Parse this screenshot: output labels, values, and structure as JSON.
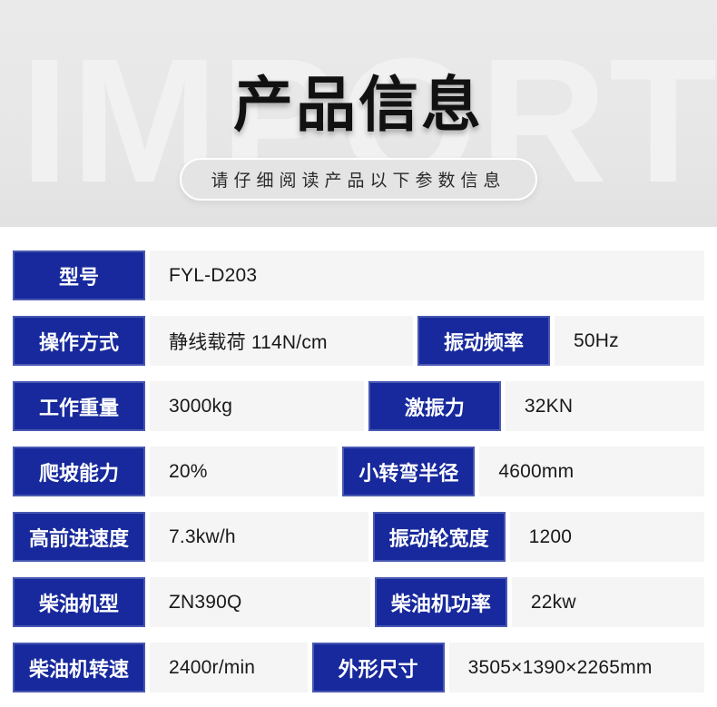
{
  "watermark": "IMPORT",
  "header": {
    "title": "产品信息",
    "subtitle": "请仔细阅读产品以下参数信息"
  },
  "colors": {
    "accent_blue": "#17299c",
    "header_bg": "#e7e7e7",
    "watermark_color": "#f1f1f1",
    "value_cell_bg": "#f5f5f5",
    "page_bg": "#ffffff"
  },
  "specs": {
    "rows": [
      {
        "cells": [
          {
            "label": "型号",
            "value": "FYL-D203"
          }
        ]
      },
      {
        "cells": [
          {
            "label": "操作方式",
            "value": "静线载荷 114N/cm"
          },
          {
            "label": "振动频率",
            "value": "50Hz"
          }
        ]
      },
      {
        "cells": [
          {
            "label": "工作重量",
            "value": "3000kg"
          },
          {
            "label": "激振力",
            "value": "32KN"
          }
        ]
      },
      {
        "cells": [
          {
            "label": "爬坡能力",
            "value": "20%"
          },
          {
            "label": "小转弯半径",
            "value": "4600mm"
          }
        ]
      },
      {
        "cells": [
          {
            "label": "高前进速度",
            "value": "7.3kw/h"
          },
          {
            "label": "振动轮宽度",
            "value": "1200"
          }
        ]
      },
      {
        "cells": [
          {
            "label": "柴油机型",
            "value": "ZN390Q"
          },
          {
            "label": "柴油机功率",
            "value": "22kw"
          }
        ]
      },
      {
        "cells": [
          {
            "label": "柴油机转速",
            "value": "2400r/min"
          },
          {
            "label": "外形尺寸",
            "value": "3505×1390×2265mm"
          }
        ]
      }
    ]
  }
}
